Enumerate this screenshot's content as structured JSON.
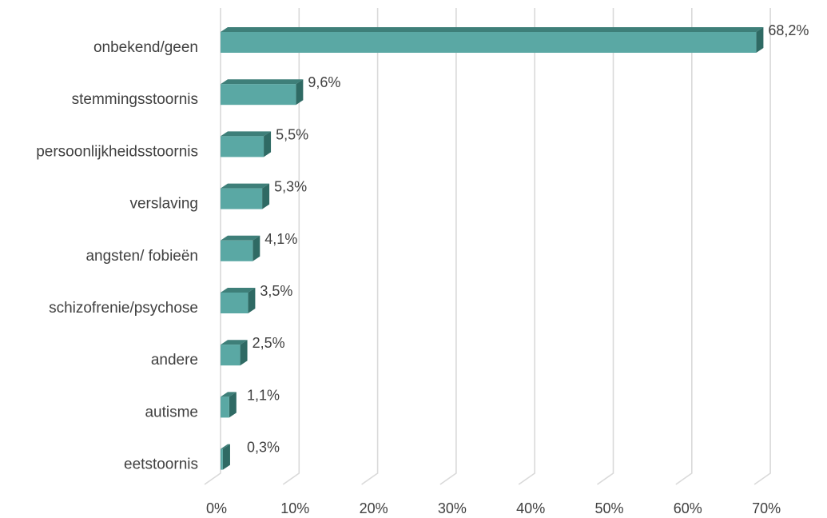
{
  "chart_data": {
    "type": "bar",
    "orientation": "horizontal",
    "style": "3d",
    "categories": [
      "onbekend/geen",
      "stemmingsstoornis",
      "persoonlijkheidsstoornis",
      "verslaving",
      "angsten/ fobieën",
      "schizofrenie/psychose",
      "andere",
      "autisme",
      "eetstoornis"
    ],
    "values": [
      68.2,
      9.6,
      5.5,
      5.3,
      4.1,
      3.5,
      2.5,
      1.1,
      0.3
    ],
    "value_labels": [
      "68,2%",
      "9,6%",
      "5,5%",
      "5,3%",
      "4,1%",
      "3,5%",
      "2,5%",
      "1,1%",
      "0,3%"
    ],
    "xlim": [
      0,
      70
    ],
    "x_ticks": [
      0,
      10,
      20,
      30,
      40,
      50,
      60,
      70
    ],
    "x_tick_labels": [
      "0%",
      "10%",
      "20%",
      "30%",
      "40%",
      "50%",
      "60%",
      "70%"
    ],
    "grid": true,
    "legend": "none",
    "colors": {
      "bar_front": "#5aa8a4",
      "bar_top": "#3e7f79",
      "bar_side": "#2f6a64",
      "grid": "#d9d9d9",
      "text": "#404040"
    }
  }
}
